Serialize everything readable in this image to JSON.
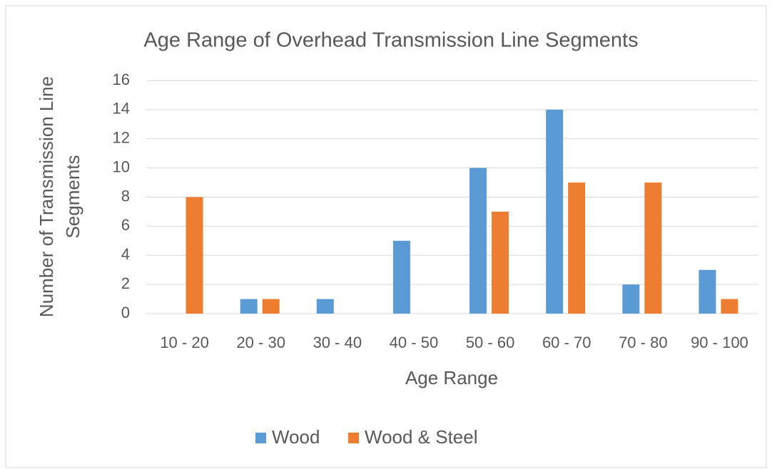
{
  "chart_data": {
    "type": "bar",
    "title": "Age Range of Overhead Transmission Line Segments",
    "x_label": "Age Range",
    "y_label": [
      "Number of Transmission Line",
      "Segments"
    ],
    "categories": [
      "10 - 20",
      "20 - 30",
      "30 - 40",
      "40 - 50",
      "50 - 60",
      "60 - 70",
      "70 - 80",
      "90 - 100"
    ],
    "series": [
      {
        "name": "Wood",
        "color": "#5b9bd5",
        "values": [
          0,
          1,
          1,
          5,
          10,
          14,
          2,
          3
        ]
      },
      {
        "name": "Wood & Steel",
        "color": "#ed7d31",
        "values": [
          8,
          1,
          0,
          0,
          7,
          9,
          9,
          1
        ]
      }
    ],
    "ylim": [
      0,
      16
    ],
    "yticks": [
      0,
      2,
      4,
      6,
      8,
      10,
      12,
      14,
      16
    ],
    "grid": true,
    "legend": "bottom"
  }
}
